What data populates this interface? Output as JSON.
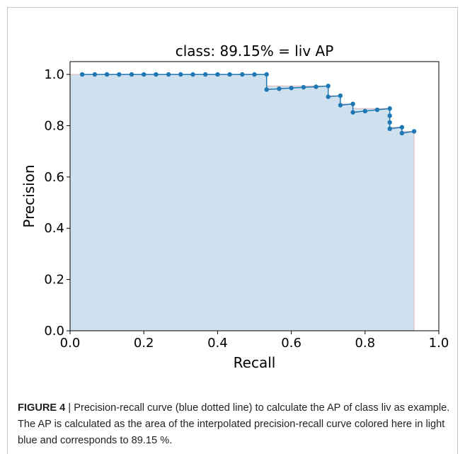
{
  "chart_data": {
    "type": "line",
    "title": "class: 89.15% = liv AP",
    "xlabel": "Recall",
    "ylabel": "Precision",
    "xlim": [
      0.0,
      1.0
    ],
    "ylim": [
      0.0,
      1.05
    ],
    "xticks": [
      "0.0",
      "0.2",
      "0.4",
      "0.6",
      "0.8",
      "1.0"
    ],
    "yticks": [
      "0.0",
      "0.2",
      "0.4",
      "0.6",
      "0.8",
      "1.0"
    ],
    "grid": false,
    "colors": {
      "line": "#1f77b4",
      "fill": "#cfe0ef",
      "fill_edge": "#e6b8b8"
    },
    "series": [
      {
        "x": [
          0.033,
          0.067,
          0.1,
          0.133,
          0.167,
          0.2,
          0.233,
          0.267,
          0.3,
          0.333,
          0.367,
          0.4,
          0.433,
          0.467,
          0.5,
          0.533,
          0.533,
          0.567,
          0.6,
          0.633,
          0.667,
          0.7,
          0.7,
          0.733,
          0.733,
          0.767,
          0.767,
          0.8,
          0.833,
          0.867,
          0.867,
          0.867,
          0.867,
          0.9,
          0.9,
          0.933
        ],
        "y": [
          1.0,
          1.0,
          1.0,
          1.0,
          1.0,
          1.0,
          1.0,
          1.0,
          1.0,
          1.0,
          1.0,
          1.0,
          1.0,
          1.0,
          1.0,
          1.0,
          0.941,
          0.944,
          0.947,
          0.95,
          0.952,
          0.955,
          0.913,
          0.917,
          0.88,
          0.885,
          0.852,
          0.857,
          0.862,
          0.867,
          0.839,
          0.813,
          0.788,
          0.794,
          0.771,
          0.778
        ]
      }
    ],
    "interpolated": {
      "x": [
        0.0,
        0.533,
        0.533,
        0.7,
        0.7,
        0.733,
        0.733,
        0.767,
        0.767,
        0.867,
        0.867,
        0.9,
        0.9,
        0.933,
        0.933
      ],
      "y": [
        1.0,
        1.0,
        0.955,
        0.955,
        0.917,
        0.917,
        0.885,
        0.885,
        0.867,
        0.867,
        0.794,
        0.794,
        0.778,
        0.778,
        0.0
      ]
    }
  },
  "caption": {
    "label": "FIGURE 4",
    "separator": " | ",
    "text": "Precision-recall curve (blue dotted line) to calculate the AP of class liv as example. The AP is calculated as the area of the interpolated precision-recall curve colored here in light blue and corresponds to 89.15 %."
  }
}
